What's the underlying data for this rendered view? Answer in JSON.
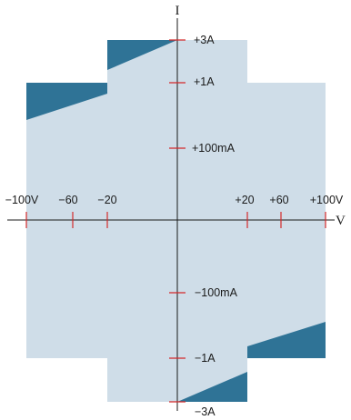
{
  "axes": {
    "x_label": "V",
    "y_label": "I"
  },
  "x_ticks": [
    "−100V",
    "−60",
    "−20",
    "+20",
    "+60",
    "+100V"
  ],
  "y_ticks": [
    "+3A",
    "+1A",
    "+100mA",
    "−100mA",
    "−1A",
    "−3A"
  ],
  "colors": {
    "region_fill": "#cfdde8",
    "highlight_fill": "#2f7396",
    "axis": "#1a1a1a",
    "tick": "#d42a2a"
  }
}
